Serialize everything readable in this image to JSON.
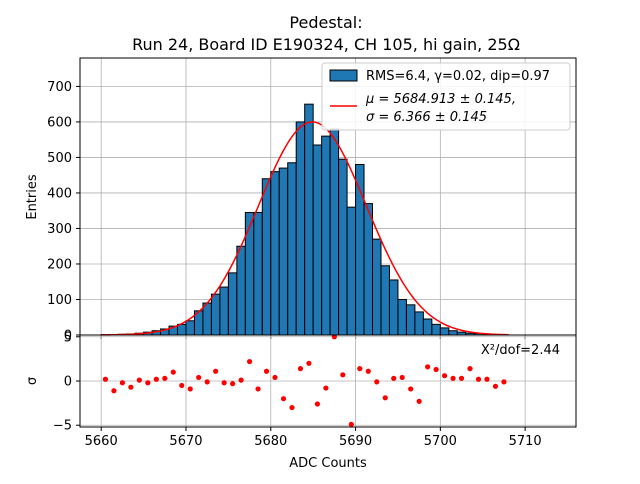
{
  "chart_data": {
    "type": "bar",
    "title_lines": [
      "Pedestal:",
      "Run 24, Board ID E190324, CH 105, hi gain, 25Ω"
    ],
    "xlabel": "ADC Counts",
    "ylabel_top": "Entries",
    "ylabel_bottom": "σ",
    "xlim": [
      5657.5,
      5716
    ],
    "xticks": [
      5660,
      5670,
      5680,
      5690,
      5700,
      5710
    ],
    "ylim_top": [
      0,
      780
    ],
    "yticks_top": [
      0,
      100,
      200,
      300,
      400,
      500,
      600,
      700
    ],
    "ylim_bottom": [
      -5.2,
      5.2
    ],
    "yticks_bottom": [
      -5,
      0,
      5
    ],
    "grid": true,
    "legend_position": "top-right",
    "legend": {
      "hist_label": "RMS=6.4, γ=0.02, dip=0.97",
      "fit_label_line1": "μ = 5684.913 ± 0.145,",
      "fit_label_line2": "σ = 6.366 ± 0.145"
    },
    "chi2_annotation": "X²/dof=2.44",
    "colors": {
      "bar": "#1f77b4",
      "fit": "#ff0000",
      "residual": "#ff0000",
      "grid": "#b0b0b0"
    },
    "bin_width": 1,
    "bins_start": [
      5660,
      5661,
      5662,
      5663,
      5664,
      5665,
      5666,
      5667,
      5668,
      5669,
      5670,
      5671,
      5672,
      5673,
      5674,
      5675,
      5676,
      5677,
      5678,
      5679,
      5680,
      5681,
      5682,
      5683,
      5684,
      5685,
      5686,
      5687,
      5688,
      5689,
      5690,
      5691,
      5692,
      5693,
      5694,
      5695,
      5696,
      5697,
      5698,
      5699,
      5700,
      5701,
      5702,
      5703,
      5704,
      5705,
      5706,
      5707
    ],
    "counts": [
      1,
      1,
      2,
      3,
      5,
      8,
      12,
      17,
      25,
      30,
      40,
      68,
      90,
      115,
      135,
      175,
      250,
      345,
      345,
      440,
      460,
      470,
      485,
      600,
      650,
      535,
      560,
      580,
      495,
      360,
      480,
      370,
      270,
      195,
      155,
      100,
      85,
      65,
      45,
      30,
      20,
      12,
      8,
      5,
      4,
      2,
      1,
      1
    ],
    "fit": {
      "mu": 5684.913,
      "sigma": 6.366,
      "amplitude": 600,
      "x_range": [
        5660,
        5708
      ]
    },
    "residuals": {
      "x": [
        5660.5,
        5661.5,
        5662.5,
        5663.5,
        5664.5,
        5665.5,
        5666.5,
        5667.5,
        5668.5,
        5669.5,
        5670.5,
        5671.5,
        5672.5,
        5673.5,
        5674.5,
        5675.5,
        5676.5,
        5677.5,
        5678.5,
        5679.5,
        5680.5,
        5681.5,
        5682.5,
        5683.5,
        5684.5,
        5685.5,
        5686.5,
        5687.5,
        5688.5,
        5689.5,
        5690.5,
        5691.5,
        5692.5,
        5693.5,
        5694.5,
        5695.5,
        5696.5,
        5697.5,
        5698.5,
        5699.5,
        5700.5,
        5701.5,
        5702.5,
        5703.5,
        5704.5,
        5705.5,
        5706.5,
        5707.5
      ],
      "y": [
        0.2,
        -1.1,
        -0.2,
        -0.7,
        0.1,
        -0.2,
        0.2,
        0.3,
        1.0,
        -0.5,
        -0.9,
        0.4,
        -0.1,
        1.1,
        -0.2,
        -0.3,
        0.1,
        2.2,
        -0.9,
        1.1,
        0.4,
        -2.0,
        -3.0,
        1.4,
        2.0,
        -2.6,
        -0.8,
        5.0,
        0.7,
        -4.9,
        1.4,
        1.1,
        -0.1,
        -1.9,
        0.3,
        0.4,
        -0.9,
        -2.3,
        1.6,
        1.3,
        0.6,
        0.3,
        0.3,
        1.4,
        0.2,
        0.2,
        -0.6,
        -0.1
      ]
    }
  }
}
